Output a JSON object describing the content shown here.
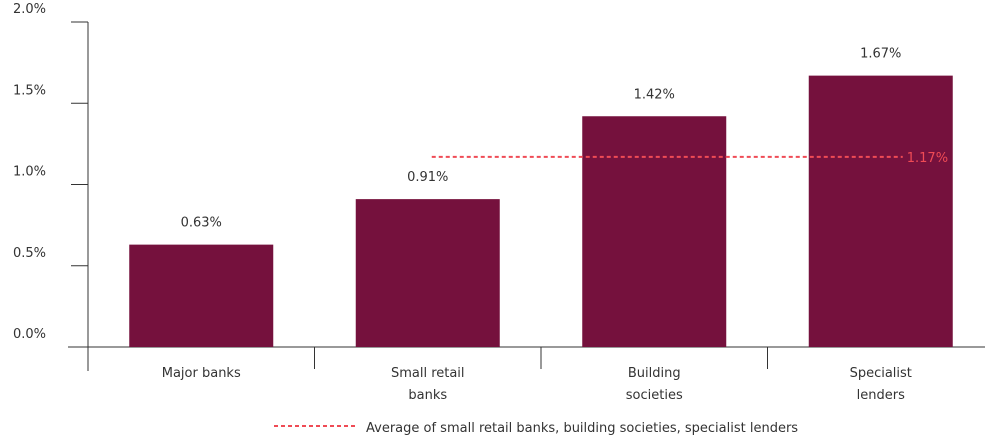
{
  "chart_data": {
    "type": "bar",
    "categories": [
      [
        "Major banks"
      ],
      [
        "Small retail",
        "banks"
      ],
      [
        "Building",
        "societies"
      ],
      [
        "Specialist",
        "lenders"
      ]
    ],
    "values": [
      0.63,
      0.91,
      1.42,
      1.67
    ],
    "value_labels": [
      "0.63%",
      "0.91%",
      "1.42%",
      "1.67%"
    ],
    "ylim": [
      0,
      2.0
    ],
    "yticks": [
      0,
      0.5,
      1.0,
      1.5,
      2.0
    ],
    "ytick_labels": [
      "0.0%",
      "0.5%",
      "1.0%",
      "1.5%",
      "2.0%"
    ],
    "title": "",
    "xlabel": "",
    "ylabel": "",
    "grid": false,
    "reference_line": {
      "value": 1.17,
      "label": "1.17%",
      "style": "dashed",
      "from_category": 1,
      "to_category": 3
    },
    "legend": {
      "placement": "bottom-center",
      "items": [
        {
          "label": "Average of small retail banks, building societies, specialist lenders",
          "style": "dashed-line"
        }
      ]
    },
    "colors": {
      "bar": "#75113d",
      "reference": "#ef4b55",
      "axis": "#333333"
    }
  }
}
